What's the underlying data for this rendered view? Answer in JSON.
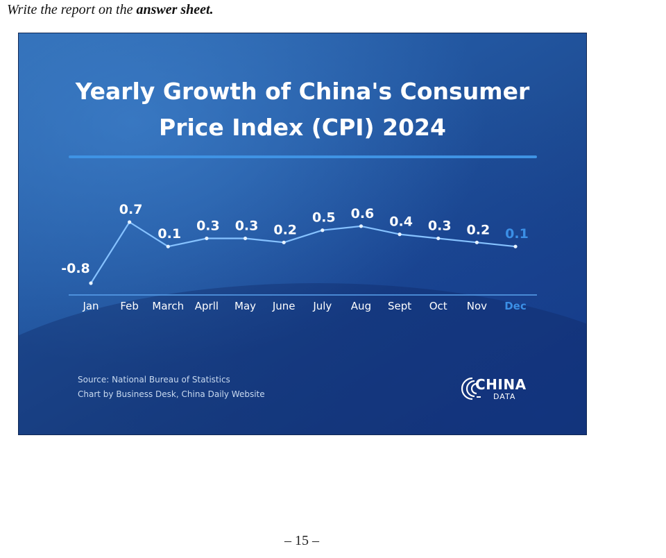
{
  "instruction": {
    "prefix": "Write the report on the ",
    "emphasis": "answer sheet."
  },
  "chart_data": {
    "type": "line",
    "title": "Yearly Growth of China's Consumer Price Index (CPI) 2024",
    "title_lines": [
      "Yearly Growth of China's Consumer",
      "Price Index (CPI) 2024"
    ],
    "categories": [
      "Jan",
      "Feb",
      "March",
      "Aprll",
      "May",
      "June",
      "July",
      "Aug",
      "Sept",
      "Oct",
      "Nov",
      "Dec"
    ],
    "values": [
      -0.8,
      0.7,
      0.1,
      0.3,
      0.3,
      0.2,
      0.5,
      0.6,
      0.4,
      0.3,
      0.2,
      0.1
    ],
    "value_labels": [
      "-0.8",
      "0.7",
      "0.1",
      "0.3",
      "0.3",
      "0.2",
      "0.5",
      "0.6",
      "0.4",
      "0.3",
      "0.2",
      "0.1"
    ],
    "ylim": [
      -0.8,
      0.7
    ],
    "y_axis_visible": false,
    "grid": false,
    "highlight_index": 11,
    "colors": {
      "line": "#86c2ff",
      "label": "#ffffff",
      "highlight": "#3b8fe6",
      "axis": "#5aa2ee"
    },
    "source_lines": [
      "Source: National Bureau of Statistics",
      "Chart by Business Desk, China Daily Website"
    ]
  },
  "logo": {
    "name": "CHINA",
    "sub": "DATA",
    "icon": "broadcast-arcs-icon"
  },
  "page_number": "– 15 –"
}
